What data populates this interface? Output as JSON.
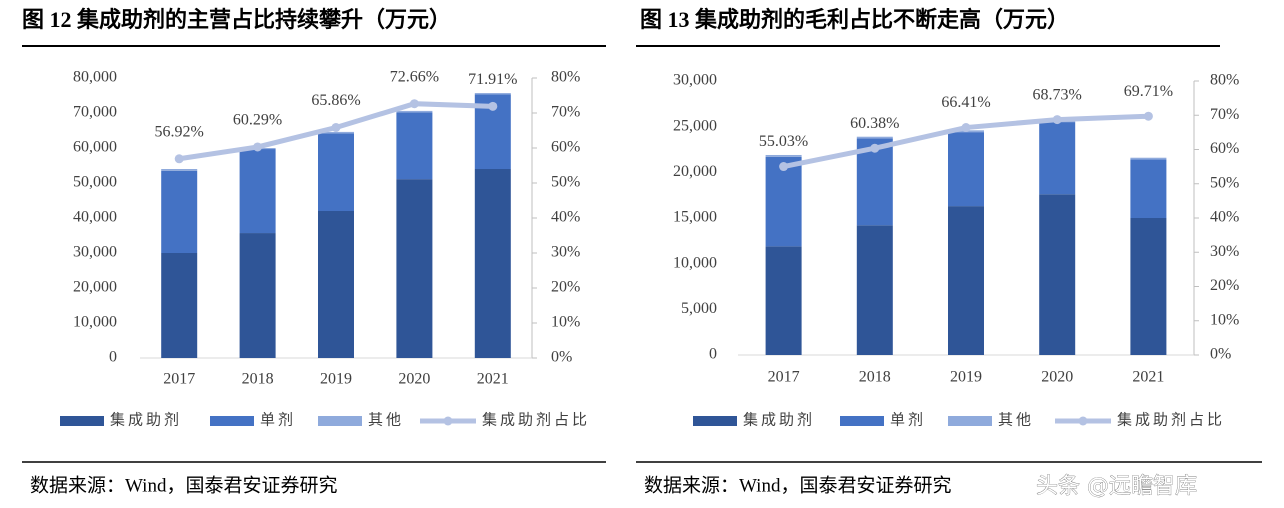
{
  "chart_data": [
    {
      "type": "bar",
      "stacked": true,
      "title": "图 12 集成助剂的主营占比持续攀升（万元）",
      "categories": [
        "2017",
        "2018",
        "2019",
        "2020",
        "2021"
      ],
      "series": [
        {
          "name": "集成助剂",
          "color": "#2f5597",
          "values": [
            30000,
            35700,
            42000,
            51100,
            54000
          ]
        },
        {
          "name": "单剂",
          "color": "#4472c4",
          "values": [
            23500,
            24000,
            22200,
            19100,
            21300
          ]
        },
        {
          "name": "其他",
          "color": "#8faadc",
          "values": [
            500,
            300,
            400,
            400,
            400
          ]
        },
        {
          "name": "集成助剂占比",
          "type": "line",
          "axis": "y2",
          "color": "#b4c2e3",
          "values": [
            56.92,
            60.29,
            65.86,
            72.66,
            71.91
          ],
          "value_labels": [
            "56.92%",
            "60.29%",
            "65.86%",
            "72.66%",
            "71.91%"
          ]
        }
      ],
      "ylim": [
        0,
        80000
      ],
      "yticks": [
        0,
        {
          "value": 10000,
          "label": "10,000"
        },
        {
          "value": 20000,
          "label": "20,000"
        },
        {
          "value": 30000,
          "label": "30,000"
        },
        {
          "value": 40000,
          "label": "40,000"
        },
        {
          "value": 50000,
          "label": "50,000"
        },
        {
          "value": 60000,
          "label": "60,000"
        },
        {
          "value": 70000,
          "label": "70,000"
        },
        {
          "value": 80000,
          "label": "80,000"
        }
      ],
      "y2lim": [
        0,
        80
      ],
      "y2ticks": [
        {
          "value": 0,
          "label": "0%"
        },
        {
          "value": 10,
          "label": "10%"
        },
        {
          "value": 20,
          "label": "20%"
        },
        {
          "value": 30,
          "label": "30%"
        },
        {
          "value": 40,
          "label": "40%"
        },
        {
          "value": 50,
          "label": "50%"
        },
        {
          "value": 60,
          "label": "60%"
        },
        {
          "value": 70,
          "label": "70%"
        },
        {
          "value": 80,
          "label": "80%"
        }
      ],
      "source": "数据来源：Wind，国泰君安证券研究"
    },
    {
      "type": "bar",
      "stacked": true,
      "title": "图 13 集成助剂的毛利占比不断走高（万元）",
      "categories": [
        "2017",
        "2018",
        "2019",
        "2020",
        "2021"
      ],
      "series": [
        {
          "name": "集成助剂",
          "color": "#2f5597",
          "values": [
            11900,
            14200,
            16300,
            17600,
            15000
          ]
        },
        {
          "name": "单剂",
          "color": "#4472c4",
          "values": [
            9800,
            9500,
            8100,
            7900,
            6400
          ]
        },
        {
          "name": "其他",
          "color": "#8faadc",
          "values": [
            200,
            200,
            200,
            200,
            200
          ]
        },
        {
          "name": "集成助剂占比",
          "type": "line",
          "axis": "y2",
          "color": "#b4c2e3",
          "values": [
            55.03,
            60.38,
            66.41,
            68.73,
            69.71
          ],
          "value_labels": [
            "55.03%",
            "60.38%",
            "66.41%",
            "68.73%",
            "69.71%"
          ]
        }
      ],
      "ylim": [
        0,
        30000
      ],
      "yticks": [
        0,
        {
          "value": 5000,
          "label": "5,000"
        },
        {
          "value": 10000,
          "label": "10,000"
        },
        {
          "value": 15000,
          "label": "15,000"
        },
        {
          "value": 20000,
          "label": "20,000"
        },
        {
          "value": 25000,
          "label": "25,000"
        },
        {
          "value": 30000,
          "label": "30,000"
        }
      ],
      "y2lim": [
        0,
        80
      ],
      "y2ticks": [
        {
          "value": 0,
          "label": "0%"
        },
        {
          "value": 10,
          "label": "10%"
        },
        {
          "value": 20,
          "label": "20%"
        },
        {
          "value": 30,
          "label": "30%"
        },
        {
          "value": 40,
          "label": "40%"
        },
        {
          "value": 50,
          "label": "50%"
        },
        {
          "value": 60,
          "label": "60%"
        },
        {
          "value": 70,
          "label": "70%"
        },
        {
          "value": 80,
          "label": "80%"
        }
      ],
      "source": "数据来源：Wind，国泰君安证券研究"
    }
  ],
  "watermark": "头条 @远瞻智库"
}
